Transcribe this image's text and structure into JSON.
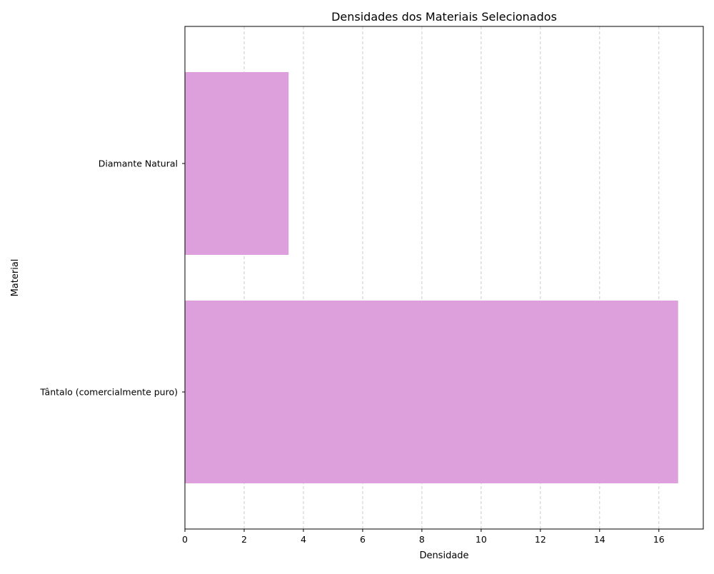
{
  "chart_data": {
    "type": "bar",
    "orientation": "horizontal",
    "title": "Densidades dos Materiais Selecionados",
    "xlabel": "Densidade",
    "ylabel": "Material",
    "categories": [
      "Diamante Natural",
      "Tântalo (comercialmente puro)"
    ],
    "values": [
      3.5,
      16.65
    ],
    "xlim": [
      0,
      17.5
    ],
    "x_ticks": [
      0,
      2,
      4,
      6,
      8,
      10,
      12,
      14,
      16
    ],
    "grid": "x-dashed",
    "legend": "none",
    "colors": {
      "bar": "#dda0dd",
      "grid": "#cccccc",
      "axis": "#000000"
    }
  }
}
